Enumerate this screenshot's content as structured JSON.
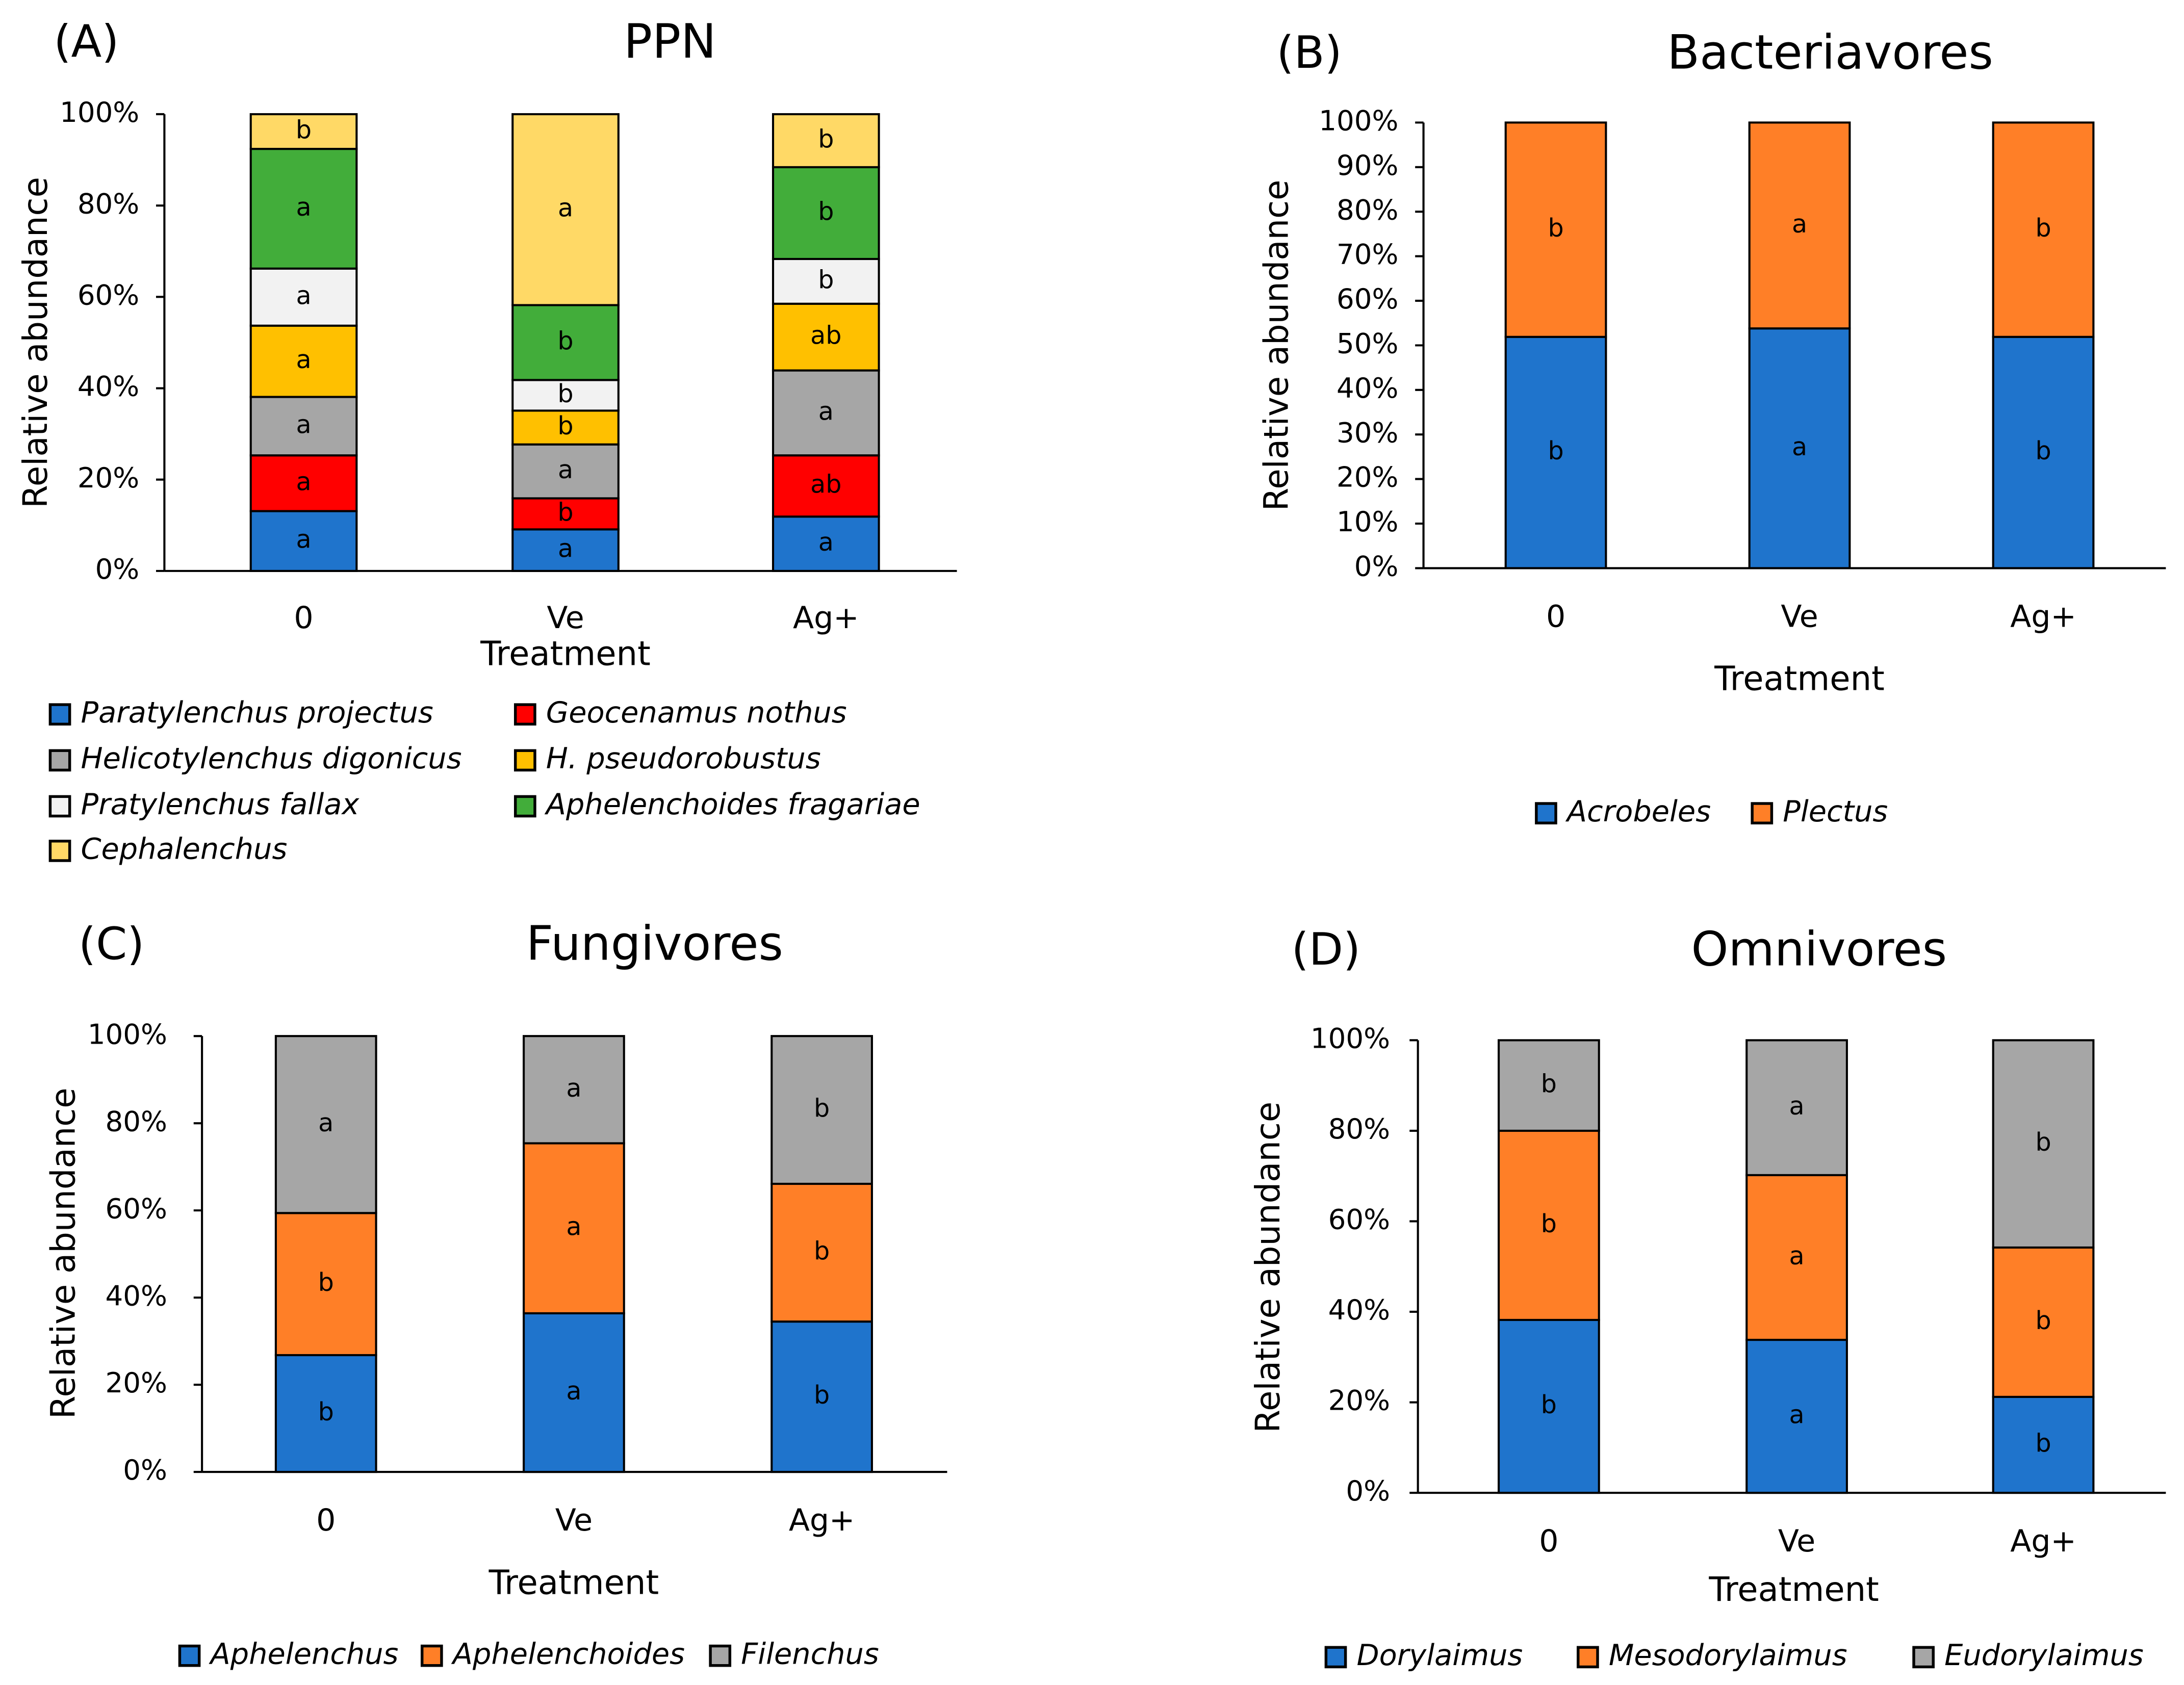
{
  "chart_data": [
    {
      "type": "bar",
      "stacked": true,
      "panel_label": "(A)",
      "title": "PPN",
      "xlabel": "Treatment",
      "ylabel": "Relative abundance",
      "ylim": [
        0,
        100
      ],
      "ytick_step": 20,
      "ytick_suffix": "%",
      "categories": [
        "0",
        "Ve",
        "Ag+"
      ],
      "legend_columns": 2,
      "series": [
        {
          "name": "Paratylenchus projectus",
          "color": "#1F74CC",
          "values": [
            13.1,
            9.1,
            11.9
          ],
          "letters": [
            "a",
            "a",
            "a"
          ]
        },
        {
          "name": "Geocenamus  nothus",
          "color": "#FF0000",
          "values": [
            12.2,
            6.8,
            13.4
          ],
          "letters": [
            "a",
            "b",
            "ab"
          ]
        },
        {
          "name": "Helicotylenchus digonicus",
          "color": "#A6A6A6",
          "values": [
            12.8,
            11.8,
            18.6
          ],
          "letters": [
            "a",
            "a",
            "a"
          ]
        },
        {
          "name": "H. pseudorobustus",
          "color": "#FFC000",
          "values": [
            15.6,
            7.4,
            14.6
          ],
          "letters": [
            "a",
            "b",
            "ab"
          ]
        },
        {
          "name": "Pratylenchus fallax",
          "color": "#F2F2F2",
          "values": [
            12.5,
            6.7,
            9.8
          ],
          "letters": [
            "a",
            "b",
            "b"
          ]
        },
        {
          "name": "Aphelenchoides fragariae",
          "color": "#42AD3A",
          "values": [
            26.2,
            16.4,
            20.1
          ],
          "letters": [
            "a",
            "b",
            "b"
          ]
        },
        {
          "name": "Cephalenchus",
          "color": "#FFD966",
          "values": [
            7.6,
            41.8,
            11.6
          ],
          "letters": [
            "b",
            "a",
            "b"
          ]
        }
      ]
    },
    {
      "type": "bar",
      "stacked": true,
      "panel_label": "(B)",
      "title": "Bacteriavores",
      "xlabel": "Treatment",
      "ylabel": "Relative abundance",
      "ylim": [
        0,
        100
      ],
      "ytick_step": 10,
      "ytick_suffix": "%",
      "categories": [
        "0",
        "Ve",
        "Ag+"
      ],
      "series": [
        {
          "name": "Acrobeles",
          "color": "#1F74CC",
          "values": [
            51.9,
            53.8,
            51.9
          ],
          "letters": [
            "b",
            "a",
            "b"
          ]
        },
        {
          "name": "Plectus",
          "color": "#FF7F27",
          "values": [
            48.1,
            46.2,
            48.1
          ],
          "letters": [
            "b",
            "a",
            "b"
          ]
        }
      ]
    },
    {
      "type": "bar",
      "stacked": true,
      "panel_label": "(C)",
      "title": "Fungivores",
      "xlabel": "Treatment",
      "ylabel": "Relative abundance",
      "ylim": [
        0,
        100
      ],
      "ytick_step": 20,
      "ytick_suffix": "%",
      "categories": [
        "0",
        "Ve",
        "Ag+"
      ],
      "series": [
        {
          "name": "Aphelenchus",
          "color": "#1F74CC",
          "values": [
            26.8,
            36.4,
            34.5
          ],
          "letters": [
            "b",
            "a",
            "b"
          ]
        },
        {
          "name": "Aphelenchoides",
          "color": "#FF7F27",
          "values": [
            32.6,
            39.0,
            31.6
          ],
          "letters": [
            "b",
            "a",
            "b"
          ]
        },
        {
          "name": "Filenchus",
          "color": "#A6A6A6",
          "values": [
            40.6,
            24.6,
            33.9
          ],
          "letters": [
            "a",
            "a",
            "b"
          ]
        }
      ]
    },
    {
      "type": "bar",
      "stacked": true,
      "panel_label": "(D)",
      "title": "Omnivores",
      "xlabel": "Treatment",
      "ylabel": "Relative abundance",
      "ylim": [
        0,
        100
      ],
      "ytick_step": 20,
      "ytick_suffix": "%",
      "categories": [
        "0",
        "Ve",
        "Ag+"
      ],
      "series": [
        {
          "name": "Dorylaimus",
          "color": "#1F74CC",
          "values": [
            38.2,
            33.8,
            21.2
          ],
          "letters": [
            "b",
            "a",
            "b"
          ]
        },
        {
          "name": "Mesodorylaimus",
          "color": "#FF7F27",
          "values": [
            41.8,
            36.4,
            33.0
          ],
          "letters": [
            "b",
            "a",
            "b"
          ]
        },
        {
          "name": "Eudorylaimus",
          "color": "#A6A6A6",
          "values": [
            20.0,
            29.8,
            45.8
          ],
          "letters": [
            "b",
            "a",
            "b"
          ]
        }
      ]
    }
  ]
}
